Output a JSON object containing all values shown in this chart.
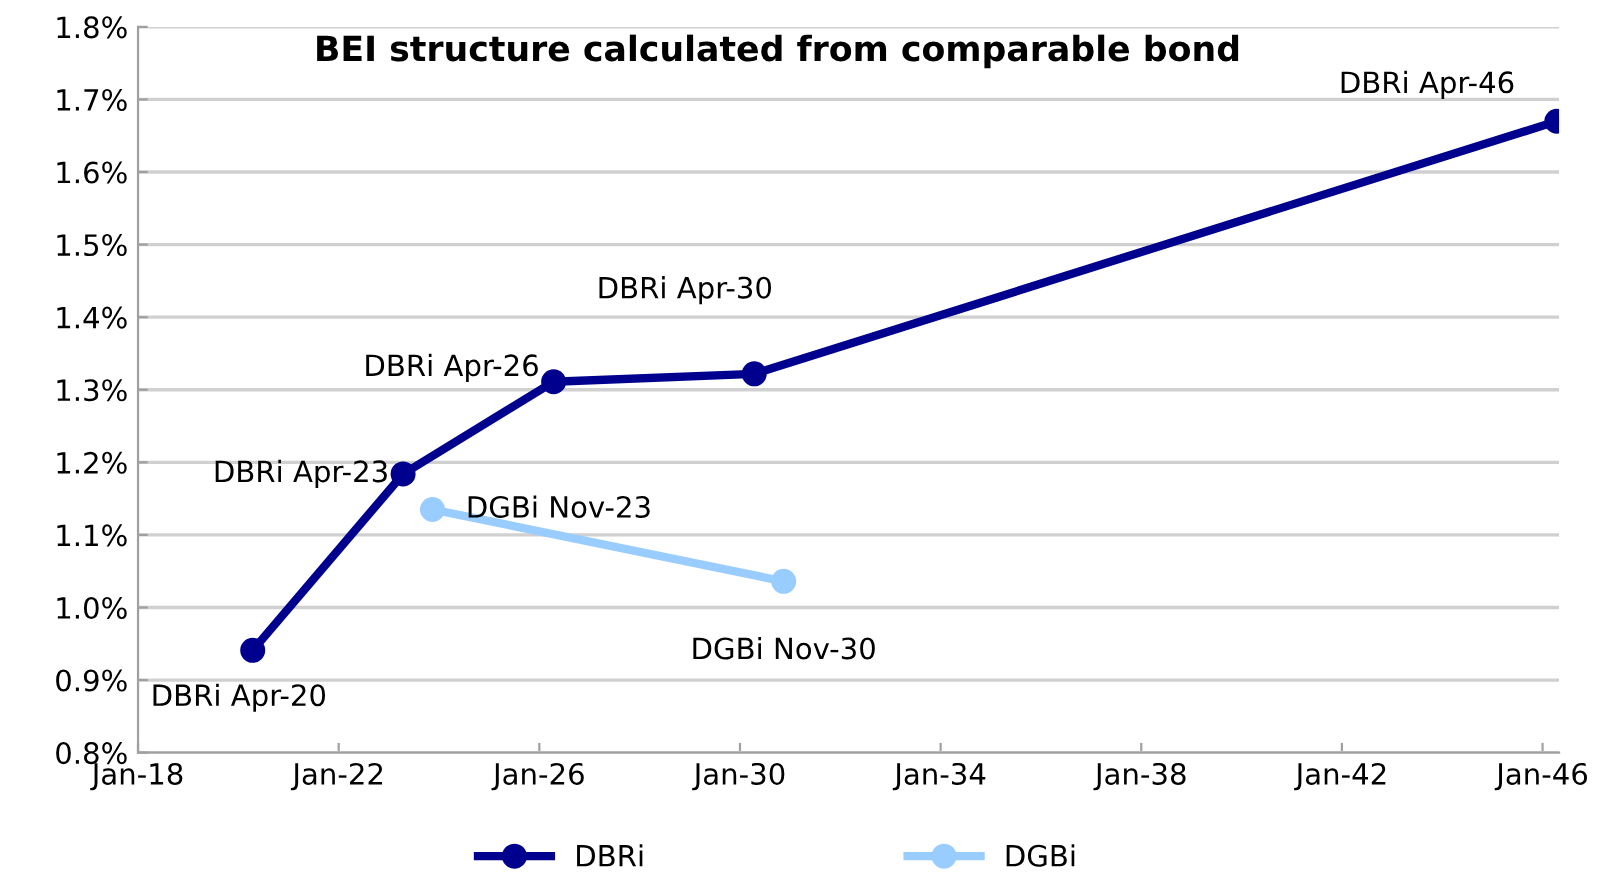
{
  "chart_data": {
    "type": "line",
    "title": "BEI structure calculated from comparable bond",
    "series": [
      {
        "name": "DBRi",
        "color": "#00008f",
        "x": [
          "2020-04",
          "2023-04",
          "2026-04",
          "2030-04",
          "2046-04"
        ],
        "values": [
          0.941,
          1.184,
          1.311,
          1.322,
          1.67
        ]
      },
      {
        "name": "DGBi",
        "color": "#99ccff",
        "x": [
          "2023-11",
          "2030-11"
        ],
        "values": [
          1.135,
          1.036
        ]
      }
    ],
    "annotations": [
      {
        "text": "DBRi Apr-20",
        "x": "2020-04",
        "y": 0.941
      },
      {
        "text": "DBRi Apr-23",
        "x": "2023-04",
        "y": 1.184
      },
      {
        "text": "DBRi Apr-26",
        "x": "2026-04",
        "y": 1.311
      },
      {
        "text": "DBRi Apr-30",
        "x": "2030-04",
        "y": 1.322
      },
      {
        "text": "DBRi Apr-46",
        "x": "2046-04",
        "y": 1.67
      },
      {
        "text": "DGBi Nov-23",
        "x": "2023-11",
        "y": 1.135
      },
      {
        "text": "DGBi Nov-30",
        "x": "2030-11",
        "y": 1.036
      }
    ],
    "xlim": [
      "2018-01",
      "2046-05"
    ],
    "xticks": [
      {
        "value": "2018-01",
        "label": "Jan-18"
      },
      {
        "value": "2022-01",
        "label": "Jan-22"
      },
      {
        "value": "2026-01",
        "label": "Jan-26"
      },
      {
        "value": "2030-01",
        "label": "Jan-30"
      },
      {
        "value": "2034-01",
        "label": "Jan-34"
      },
      {
        "value": "2038-01",
        "label": "Jan-38"
      },
      {
        "value": "2042-01",
        "label": "Jan-42"
      },
      {
        "value": "2046-01",
        "label": "Jan-46"
      }
    ],
    "ylim": [
      0.8,
      1.8
    ],
    "yticks": [
      {
        "value": 0.8,
        "label": "0.8%"
      },
      {
        "value": 0.9,
        "label": "0.9%"
      },
      {
        "value": 1.0,
        "label": "1.0%"
      },
      {
        "value": 1.1,
        "label": "1.1%"
      },
      {
        "value": 1.2,
        "label": "1.2%"
      },
      {
        "value": 1.3,
        "label": "1.3%"
      },
      {
        "value": 1.4,
        "label": "1.4%"
      },
      {
        "value": 1.5,
        "label": "1.5%"
      },
      {
        "value": 1.6,
        "label": "1.6%"
      },
      {
        "value": 1.7,
        "label": "1.7%"
      },
      {
        "value": 1.8,
        "label": "1.8%"
      }
    ],
    "grid": "y",
    "legend": "bottom",
    "marker": "circle",
    "line_style": "solid"
  }
}
